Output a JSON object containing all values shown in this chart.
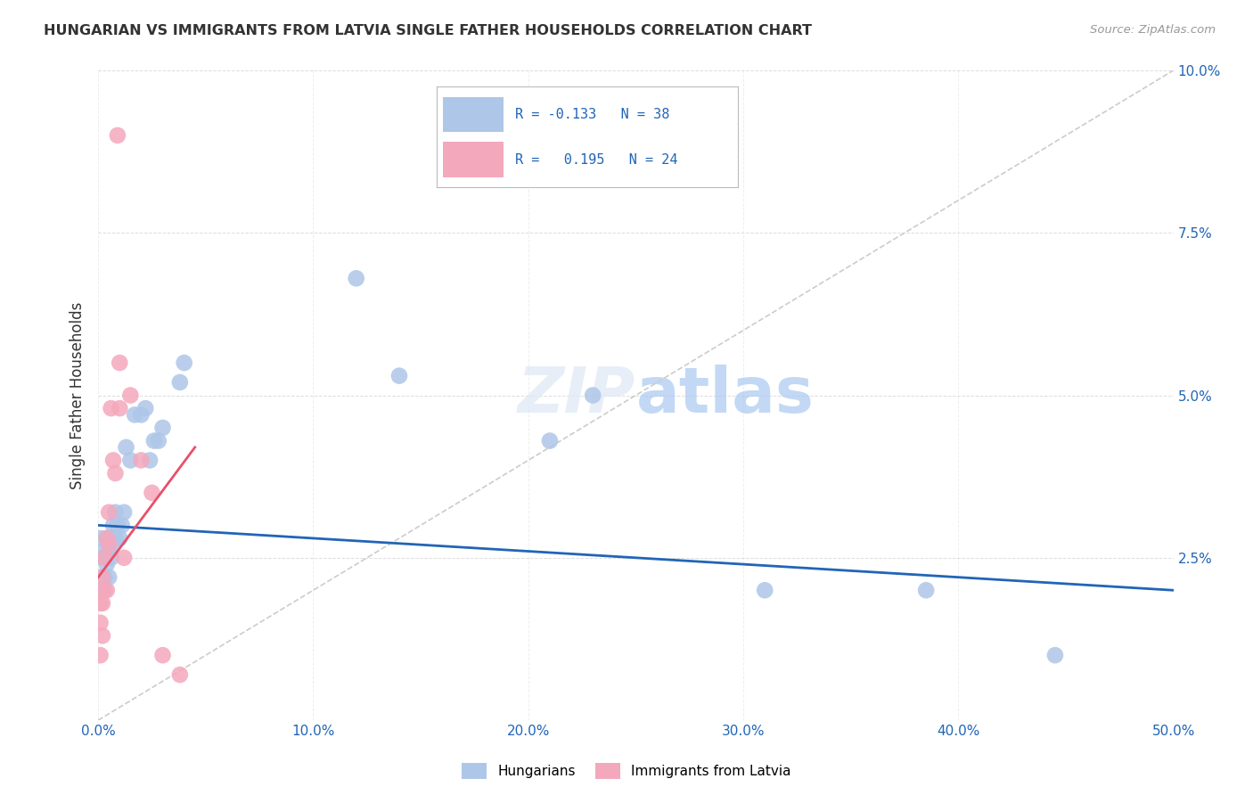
{
  "title": "HUNGARIAN VS IMMIGRANTS FROM LATVIA SINGLE FATHER HOUSEHOLDS CORRELATION CHART",
  "source": "Source: ZipAtlas.com",
  "ylabel_label": "Single Father Households",
  "xlim": [
    0.0,
    0.5
  ],
  "ylim": [
    0.0,
    0.1
  ],
  "xticks": [
    0.0,
    0.1,
    0.2,
    0.3,
    0.4,
    0.5
  ],
  "yticks": [
    0.0,
    0.025,
    0.05,
    0.075,
    0.1
  ],
  "ytick_labels": [
    "",
    "2.5%",
    "5.0%",
    "7.5%",
    "10.0%"
  ],
  "xtick_labels": [
    "0.0%",
    "10.0%",
    "20.0%",
    "30.0%",
    "40.0%",
    "50.0%"
  ],
  "legend1_R": "-0.133",
  "legend1_N": "38",
  "legend2_R": "0.195",
  "legend2_N": "24",
  "hungarian_color": "#aec6e8",
  "latvian_color": "#f4a8bc",
  "hungarian_line_color": "#2165b6",
  "latvian_line_color": "#e8506a",
  "diag_line_color": "#cccccc",
  "background_color": "#ffffff",
  "hungarian_x": [
    0.001,
    0.001,
    0.002,
    0.002,
    0.003,
    0.003,
    0.004,
    0.004,
    0.005,
    0.005,
    0.006,
    0.006,
    0.007,
    0.007,
    0.008,
    0.008,
    0.009,
    0.01,
    0.011,
    0.012,
    0.013,
    0.015,
    0.017,
    0.02,
    0.022,
    0.024,
    0.026,
    0.028,
    0.03,
    0.038,
    0.04,
    0.12,
    0.14,
    0.21,
    0.23,
    0.31,
    0.385,
    0.445
  ],
  "hungarian_y": [
    0.028,
    0.022,
    0.025,
    0.02,
    0.026,
    0.022,
    0.028,
    0.024,
    0.026,
    0.022,
    0.028,
    0.025,
    0.03,
    0.027,
    0.032,
    0.028,
    0.03,
    0.028,
    0.03,
    0.032,
    0.042,
    0.04,
    0.047,
    0.047,
    0.048,
    0.04,
    0.043,
    0.043,
    0.045,
    0.052,
    0.055,
    0.068,
    0.053,
    0.043,
    0.05,
    0.02,
    0.02,
    0.01
  ],
  "latvian_x": [
    0.001,
    0.001,
    0.001,
    0.002,
    0.002,
    0.002,
    0.003,
    0.003,
    0.004,
    0.004,
    0.005,
    0.005,
    0.006,
    0.007,
    0.008,
    0.009,
    0.01,
    0.01,
    0.012,
    0.015,
    0.02,
    0.025,
    0.03,
    0.038
  ],
  "latvian_y": [
    0.018,
    0.015,
    0.01,
    0.022,
    0.018,
    0.013,
    0.025,
    0.02,
    0.028,
    0.02,
    0.032,
    0.027,
    0.048,
    0.04,
    0.038,
    0.09,
    0.055,
    0.048,
    0.025,
    0.05,
    0.04,
    0.035,
    0.01,
    0.007
  ],
  "hungarian_trendline_x": [
    0.0,
    0.5
  ],
  "hungarian_trendline_y": [
    0.03,
    0.02
  ],
  "latvian_trendline_x": [
    0.0,
    0.045
  ],
  "latvian_trendline_y": [
    0.022,
    0.042
  ],
  "diag_line_x": [
    0.0,
    0.5
  ],
  "diag_line_y": [
    0.0,
    0.1
  ]
}
